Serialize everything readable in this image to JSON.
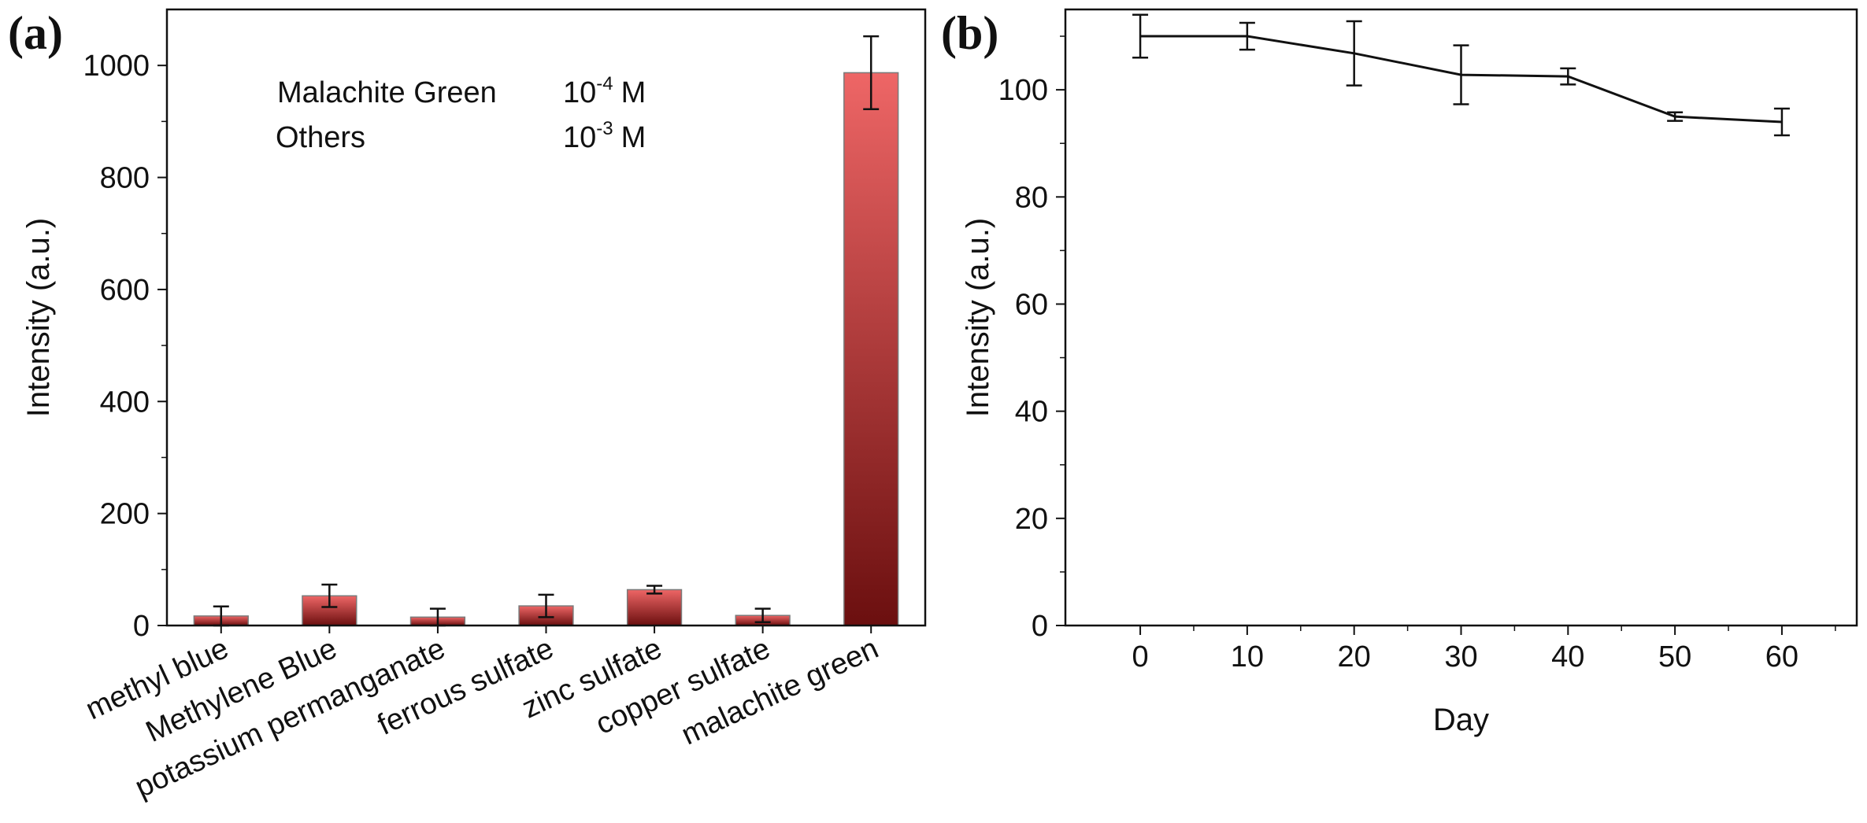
{
  "chart_data": [
    {
      "panel": "(a)",
      "type": "bar",
      "title": "",
      "xlabel": "",
      "ylabel": "Intensity (a.u.)",
      "ylim": [
        0,
        1100
      ],
      "yticks": [
        0,
        200,
        400,
        600,
        800,
        1000
      ],
      "categories": [
        "methyl blue",
        "Methylene Blue",
        "potassium permanganate",
        "ferrous sulfate",
        "zinc sulfate",
        "copper sulfate",
        "malachite green"
      ],
      "values": [
        17,
        53,
        15,
        35,
        64,
        18,
        987
      ],
      "errors": [
        17,
        20,
        15,
        20,
        7,
        12,
        65
      ],
      "color_top": "#ee6666",
      "color_bottom": "#6b0f0f",
      "annotation": {
        "line1_name": "Malachite Green",
        "line1_base": "10",
        "line1_exp": "-4",
        "line1_unit": "M",
        "line2_name": "Others",
        "line2_base": "10",
        "line2_exp": "-3",
        "line2_unit": "M"
      }
    },
    {
      "panel": "(b)",
      "type": "line",
      "title": "",
      "xlabel": "Day",
      "ylabel": "Intensity (a.u.)",
      "xlim": [
        -7,
        67
      ],
      "ylim": [
        0,
        115
      ],
      "xticks": [
        0,
        10,
        20,
        30,
        40,
        50,
        60
      ],
      "yticks": [
        0,
        20,
        40,
        60,
        80,
        100
      ],
      "x": [
        0,
        10,
        20,
        30,
        40,
        50,
        60
      ],
      "y": [
        110,
        110,
        106.8,
        102.8,
        102.5,
        95,
        94
      ],
      "errors": [
        4,
        2.5,
        6,
        5.5,
        1.5,
        0.8,
        2.5
      ],
      "color": "#111111"
    }
  ]
}
